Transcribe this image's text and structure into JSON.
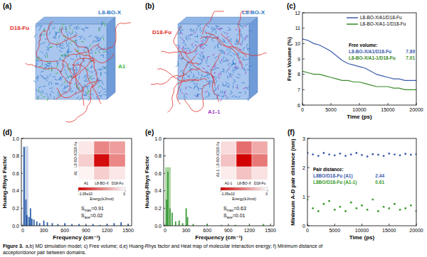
{
  "figure": {
    "caption": {
      "label": "Figure 3.",
      "lines": [
        "a,b) MD simulation model; c) Free volume; d,e) Huang-Rhys factor and Heat map of molecular interaction energy; f) Minimum distance of",
        "acceptor/donor pair between domains."
      ]
    },
    "models": [
      {
        "panel": "(a)",
        "labels": [
          {
            "text": "D18-Fu",
            "color": "#e0302a"
          },
          {
            "text": "L8-BO-X",
            "color": "#2f78c8"
          },
          {
            "text": "A1",
            "color": "#3cb43c"
          }
        ]
      },
      {
        "panel": "(b)",
        "labels": [
          {
            "text": "D18-Fu",
            "color": "#e0302a"
          },
          {
            "text": "L8-BO-X",
            "color": "#2f78c8"
          },
          {
            "text": "A1-1",
            "color": "#a040c0"
          }
        ]
      }
    ]
  },
  "chart_data": [
    {
      "panel": "(c)",
      "type": "line",
      "x_label": "Time (ps)",
      "y_label": "Free Volume (%)",
      "xlim": [
        0,
        20000
      ],
      "xticks": [
        0,
        5000,
        10000,
        15000,
        20000
      ],
      "ylim": [
        6,
        12
      ],
      "yticks": [
        6,
        7,
        8,
        9,
        10,
        11,
        12
      ],
      "grid": false,
      "legend": "upper right",
      "x": [
        0,
        1000,
        2000,
        3000,
        4000,
        5000,
        6000,
        7000,
        8000,
        9000,
        10000,
        11000,
        12000,
        13000,
        14000,
        15000,
        16000,
        17000,
        18000,
        19000,
        20000
      ],
      "series": [
        {
          "name": "L8-BO-X/A1/D18-Fu",
          "color": "#3b5bab",
          "mean": 7.89,
          "values": [
            10.3,
            10.2,
            10.0,
            9.9,
            9.7,
            9.5,
            9.2,
            8.9,
            8.7,
            8.6,
            8.5,
            8.4,
            8.2,
            8.0,
            7.9,
            7.8,
            7.7,
            7.7,
            7.6,
            7.6,
            7.6
          ]
        },
        {
          "name": "L8-BO-X/A1-1/D18-Fu",
          "color": "#3a8a2a",
          "mean": 7.01,
          "values": [
            8.2,
            8.1,
            8.0,
            8.0,
            7.9,
            7.8,
            7.7,
            7.6,
            7.6,
            7.5,
            7.5,
            7.4,
            7.3,
            7.2,
            7.2,
            7.2,
            7.1,
            7.1,
            7.0,
            7.0,
            7.0
          ]
        }
      ],
      "annotation_title": "Free volume:"
    },
    {
      "panel": "(d)",
      "type": "bar",
      "x_label": "Frequency (cm⁻¹)",
      "y_label": "Huang-Rhys Factor",
      "xlim": [
        -20,
        1550
      ],
      "xticks": [
        0,
        300,
        600,
        900,
        1200,
        1500
      ],
      "ylim": [
        0,
        1
      ],
      "yticks": [
        {
          "value": 0,
          "label": "0.0"
        },
        {
          "value": 0.2,
          "label": "0.2"
        },
        {
          "value": 0.4,
          "label": "0.4"
        },
        {
          "value": 0.6,
          "label": "0.6"
        },
        {
          "value": 0.8,
          "label": "0.8"
        },
        {
          "value": 1,
          "label": "1.0"
        }
      ],
      "grid": false,
      "color": "#2d5fa8",
      "x": [
        20,
        45,
        60,
        90,
        110,
        130,
        160,
        200,
        240,
        300,
        350,
        420,
        500,
        600,
        700,
        800,
        900,
        1000,
        1100,
        1200,
        1300,
        1400,
        1500
      ],
      "values": [
        0.9,
        0.3,
        0.12,
        0.1,
        0.2,
        0.08,
        0.07,
        0.05,
        0.03,
        0.06,
        0.04,
        0.03,
        0.02,
        0.03,
        0.02,
        0.02,
        0.01,
        0.02,
        0.01,
        0.02,
        0.03,
        0.04,
        0.02
      ],
      "highlight": {
        "x": [
          0,
          80
        ],
        "value": 0.91,
        "color": "#c9d5ea"
      },
      "stats": [
        [
          "S",
          "max",
          "=0.91"
        ],
        [
          "S",
          "ave",
          "=0.02"
        ]
      ],
      "heatmap": {
        "rows": [
          "D18-Fu",
          "L8-BO-X",
          "A1"
        ],
        "columns": [
          "A1",
          "L8-BO-X",
          "D18-Fu"
        ],
        "cells": [
          [
            -1000000000.0,
            -5000000000.0,
            -4000000000.0
          ],
          [
            -2000000000.0,
            -10000000000.0,
            -5000000000.0
          ],
          [
            -500000000.0,
            -2000000000.0,
            -1000000000.0
          ]
        ],
        "colorbar": {
          "range": [
            -10500000000.0,
            0
          ],
          "ticks": [
            {
              "value": -10500000000.0,
              "label": "-1.05e10"
            },
            0
          ],
          "label": "Energy(kJ/mol)"
        }
      }
    },
    {
      "panel": "(e)",
      "type": "bar",
      "x_label": "Frequency (cm⁻¹)",
      "y_label": "Huang-Rhys Factor",
      "xlim": [
        -20,
        1550
      ],
      "xticks": [
        0,
        300,
        600,
        900,
        1200,
        1500
      ],
      "ylim": [
        0,
        1
      ],
      "yticks": [
        {
          "value": 0,
          "label": "0.0"
        },
        {
          "value": 0.2,
          "label": "0.2"
        },
        {
          "value": 0.4,
          "label": "0.4"
        },
        {
          "value": 0.6,
          "label": "0.6"
        },
        {
          "value": 0.8,
          "label": "0.8"
        },
        {
          "value": 1,
          "label": "1.0"
        }
      ],
      "grid": false,
      "color": "#3a9a3a",
      "x": [
        20,
        40,
        70,
        100,
        150,
        200,
        250,
        300,
        320,
        400,
        600,
        800,
        1000,
        1200,
        1400
      ],
      "values": [
        0.3,
        0.62,
        0.2,
        0.15,
        0.05,
        0.06,
        0.03,
        0.2,
        0.1,
        0.02,
        0.02,
        0.01,
        0.01,
        0.01,
        0.02
      ],
      "highlight": {
        "x": [
          0,
          80
        ],
        "value": 0.67,
        "color": "#a9d6a0"
      },
      "stats": [
        [
          "S",
          "max",
          "=0.63"
        ],
        [
          "S",
          "ave",
          "=0.01"
        ]
      ],
      "heatmap": {
        "rows": [
          "D18-Fu",
          "L8-BO-X",
          "A1-1"
        ],
        "columns": [
          "A1-1",
          "L8-BO-X",
          "D18-Fu"
        ],
        "cells": [
          [
            -1500000000.0,
            -6000000000.0,
            -3500000000.0
          ],
          [
            -2500000000.0,
            -10500000000.0,
            -5500000000.0
          ],
          [
            -800000000.0,
            -2500000000.0,
            -1200000000.0
          ]
        ],
        "colorbar": {
          "range": [
            -10500000000.0,
            0
          ],
          "ticks": [
            {
              "value": -10500000000.0,
              "label": "-1.05e10"
            },
            0
          ],
          "label": "Energy(kJ/mol)"
        }
      }
    },
    {
      "panel": "(f)",
      "type": "scatter",
      "x_label": "Time (ps)",
      "y_label": "Minimum A-D pair distance (nm)",
      "xlim": [
        0,
        20000
      ],
      "xticks": [
        0,
        5000,
        10000,
        15000,
        20000
      ],
      "ylim": [
        0,
        3
      ],
      "yticks": [
        0,
        1,
        2,
        3
      ],
      "grid": false,
      "marker": "circle",
      "x": [
        0,
        1000,
        2000,
        3000,
        4000,
        5000,
        6000,
        7000,
        8000,
        9000,
        10000,
        11000,
        12000,
        13000,
        14000,
        15000,
        16000,
        17000,
        18000,
        19000,
        20000
      ],
      "series": [
        {
          "name": "L8BO/D18-Fu (A1)",
          "color": "#3b5bab",
          "mean": 2.44,
          "values": [
            2.5,
            2.45,
            2.4,
            2.5,
            2.45,
            2.42,
            2.48,
            2.4,
            2.45,
            2.5,
            2.43,
            2.38,
            2.46,
            2.44,
            2.4,
            2.48,
            2.45,
            2.42,
            2.47,
            2.44,
            2.46
          ]
        },
        {
          "name": "L8BO/D18-Fu (A1-1)",
          "color": "#3a9a2a",
          "mean": 0.61,
          "values": [
            0.9,
            0.6,
            0.5,
            0.75,
            0.85,
            0.55,
            0.65,
            0.5,
            0.8,
            0.6,
            0.7,
            0.55,
            0.9,
            0.5,
            0.65,
            0.6,
            0.75,
            0.55,
            0.6,
            0.7,
            0.5
          ]
        }
      ],
      "annotation_title": "Pair distance:"
    }
  ]
}
